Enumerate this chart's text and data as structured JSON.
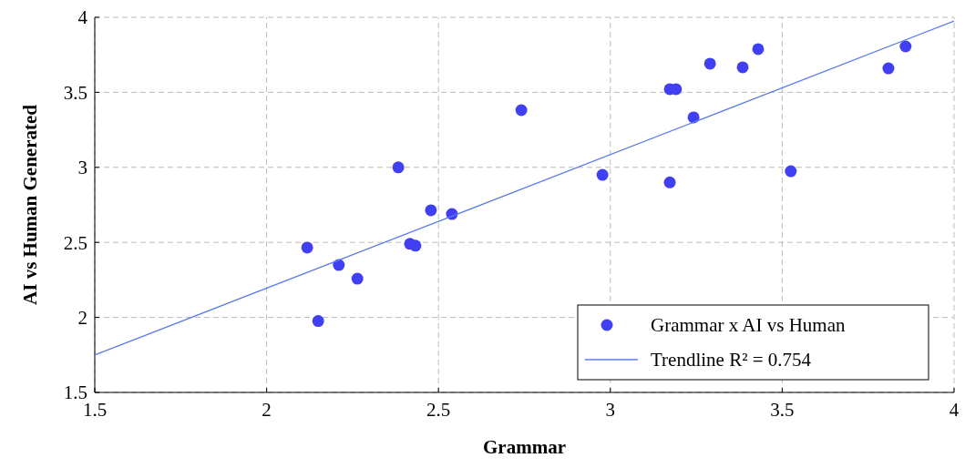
{
  "chart_data": {
    "type": "scatter",
    "xlabel": "Grammar",
    "ylabel": "AI vs Human Generated",
    "xlim": [
      1.5,
      4
    ],
    "ylim": [
      1.5,
      4
    ],
    "xticks": [
      1.5,
      2,
      2.5,
      3,
      3.5,
      4
    ],
    "yticks": [
      1.5,
      2,
      2.5,
      3,
      3.5,
      4
    ],
    "grid": true,
    "legend": "bottom right",
    "series": [
      {
        "name": "Grammar x AI vs Human",
        "color": "#4040f2",
        "marker": "circle",
        "x": [
          2.118,
          2.15,
          2.21,
          2.264,
          2.383,
          2.417,
          2.433,
          2.478,
          2.539,
          2.741,
          2.977,
          3.173,
          3.191,
          3.173,
          3.242,
          3.29,
          3.385,
          3.43,
          3.525,
          3.809,
          3.859
        ],
        "values": [
          2.465,
          1.976,
          2.349,
          2.258,
          3.0,
          2.49,
          2.478,
          2.714,
          2.689,
          3.381,
          2.95,
          3.521,
          3.521,
          2.9,
          3.333,
          3.691,
          3.667,
          3.788,
          2.974,
          3.66,
          3.806
        ]
      },
      {
        "name": "Trendline R² = 0.754",
        "color": "#5b7cf0",
        "type": "line",
        "marker": "none",
        "line_style": "solid",
        "x": [
          1.5,
          4
        ],
        "values": [
          1.75,
          3.975
        ]
      }
    ]
  }
}
